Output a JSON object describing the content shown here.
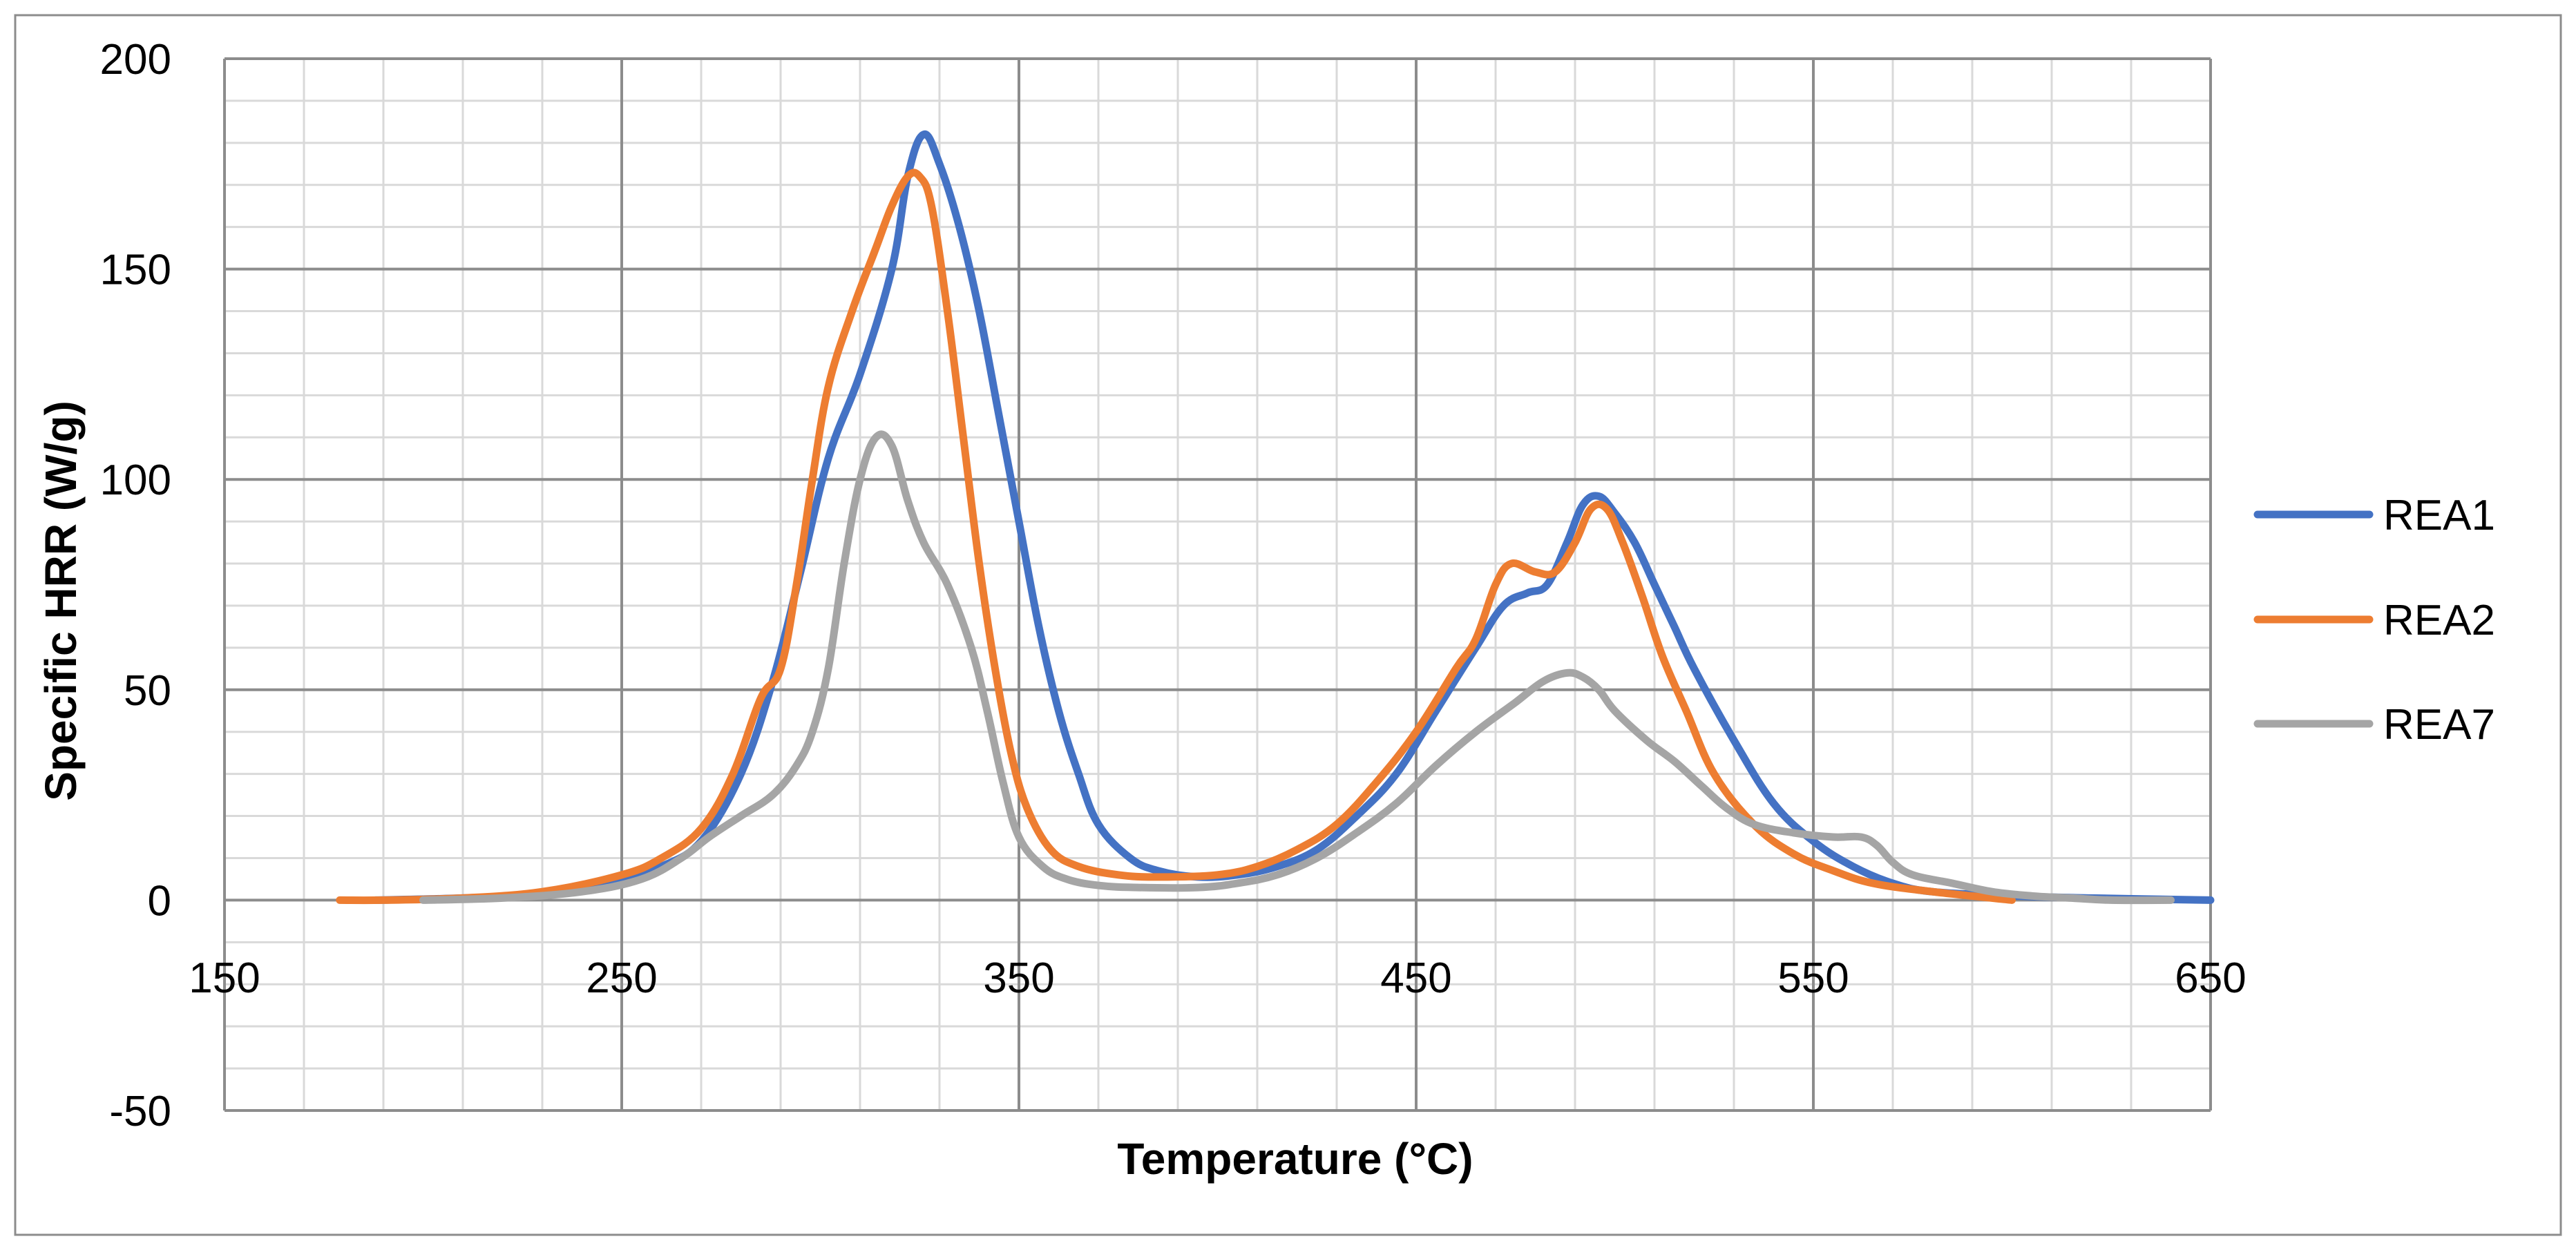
{
  "chart_data": {
    "type": "line",
    "title": "",
    "xlabel": "Temperature (°C)",
    "ylabel": "Specific HRR (W/g)",
    "xlim": [
      150,
      650
    ],
    "ylim": [
      -50,
      200
    ],
    "x_major_step": 100,
    "x_minor_step": 20,
    "y_major_step": 50,
    "y_minor_step": 10,
    "x_tick_labels": [
      "150",
      "250",
      "350",
      "450",
      "550",
      "650"
    ],
    "y_tick_labels": [
      "-50",
      "0",
      "50",
      "100",
      "150",
      "200"
    ],
    "grid": true,
    "legend_position": "right",
    "series": [
      {
        "name": "REA1",
        "color": "#4472C4",
        "points": [
          [
            188,
            0
          ],
          [
            210,
            0.5
          ],
          [
            230,
            1.5
          ],
          [
            250,
            5
          ],
          [
            260,
            8
          ],
          [
            270,
            14
          ],
          [
            280,
            30
          ],
          [
            288,
            52
          ],
          [
            295,
            78
          ],
          [
            302,
            105
          ],
          [
            310,
            125
          ],
          [
            318,
            150
          ],
          [
            322,
            172
          ],
          [
            326,
            182
          ],
          [
            330,
            175
          ],
          [
            335,
            160
          ],
          [
            340,
            140
          ],
          [
            345,
            115
          ],
          [
            350,
            90
          ],
          [
            355,
            65
          ],
          [
            360,
            45
          ],
          [
            365,
            30
          ],
          [
            370,
            18
          ],
          [
            378,
            10
          ],
          [
            385,
            7
          ],
          [
            395,
            5.5
          ],
          [
            405,
            6
          ],
          [
            415,
            8
          ],
          [
            425,
            12
          ],
          [
            435,
            20
          ],
          [
            445,
            30
          ],
          [
            455,
            45
          ],
          [
            465,
            60
          ],
          [
            472,
            70
          ],
          [
            478,
            73
          ],
          [
            483,
            75
          ],
          [
            488,
            85
          ],
          [
            492,
            94
          ],
          [
            496,
            96
          ],
          [
            500,
            92
          ],
          [
            505,
            85
          ],
          [
            510,
            75
          ],
          [
            515,
            65
          ],
          [
            520,
            55
          ],
          [
            530,
            38
          ],
          [
            540,
            23
          ],
          [
            550,
            14
          ],
          [
            560,
            8
          ],
          [
            570,
            4
          ],
          [
            580,
            2
          ],
          [
            600,
            1
          ],
          [
            620,
            0.5
          ],
          [
            650,
            0
          ]
        ]
      },
      {
        "name": "REA2",
        "color": "#ED7D31",
        "points": [
          [
            179,
            0
          ],
          [
            190,
            0
          ],
          [
            210,
            0.5
          ],
          [
            230,
            2
          ],
          [
            250,
            6
          ],
          [
            260,
            10
          ],
          [
            270,
            17
          ],
          [
            278,
            30
          ],
          [
            285,
            48
          ],
          [
            290,
            55
          ],
          [
            294,
            75
          ],
          [
            298,
            100
          ],
          [
            302,
            122
          ],
          [
            308,
            140
          ],
          [
            314,
            155
          ],
          [
            318,
            165
          ],
          [
            322,
            172
          ],
          [
            325,
            172
          ],
          [
            328,
            165
          ],
          [
            332,
            140
          ],
          [
            336,
            110
          ],
          [
            340,
            80
          ],
          [
            344,
            55
          ],
          [
            348,
            35
          ],
          [
            352,
            22
          ],
          [
            358,
            12
          ],
          [
            365,
            8
          ],
          [
            375,
            6
          ],
          [
            385,
            5.5
          ],
          [
            400,
            6
          ],
          [
            410,
            8
          ],
          [
            420,
            12
          ],
          [
            430,
            18
          ],
          [
            440,
            28
          ],
          [
            450,
            40
          ],
          [
            460,
            55
          ],
          [
            465,
            62
          ],
          [
            470,
            75
          ],
          [
            474,
            80
          ],
          [
            480,
            78
          ],
          [
            485,
            78
          ],
          [
            490,
            85
          ],
          [
            494,
            93
          ],
          [
            498,
            93
          ],
          [
            502,
            85
          ],
          [
            507,
            72
          ],
          [
            512,
            58
          ],
          [
            518,
            45
          ],
          [
            525,
            30
          ],
          [
            535,
            18
          ],
          [
            545,
            11
          ],
          [
            555,
            7
          ],
          [
            565,
            4
          ],
          [
            580,
            2
          ],
          [
            600,
            0
          ]
        ]
      },
      {
        "name": "REA7",
        "color": "#A5A5A5",
        "points": [
          [
            200,
            0
          ],
          [
            220,
            0.5
          ],
          [
            240,
            2
          ],
          [
            255,
            5
          ],
          [
            265,
            10
          ],
          [
            272,
            15
          ],
          [
            280,
            20
          ],
          [
            288,
            25
          ],
          [
            294,
            32
          ],
          [
            298,
            40
          ],
          [
            302,
            55
          ],
          [
            306,
            80
          ],
          [
            310,
            100
          ],
          [
            314,
            110
          ],
          [
            318,
            108
          ],
          [
            322,
            95
          ],
          [
            326,
            85
          ],
          [
            332,
            75
          ],
          [
            338,
            60
          ],
          [
            342,
            45
          ],
          [
            346,
            28
          ],
          [
            350,
            15
          ],
          [
            356,
            8
          ],
          [
            362,
            5
          ],
          [
            370,
            3.5
          ],
          [
            380,
            3
          ],
          [
            395,
            3
          ],
          [
            405,
            4
          ],
          [
            415,
            6
          ],
          [
            425,
            10
          ],
          [
            435,
            16
          ],
          [
            445,
            23
          ],
          [
            455,
            32
          ],
          [
            465,
            40
          ],
          [
            475,
            47
          ],
          [
            482,
            52
          ],
          [
            488,
            54
          ],
          [
            492,
            53
          ],
          [
            496,
            50
          ],
          [
            500,
            45
          ],
          [
            508,
            38
          ],
          [
            515,
            33
          ],
          [
            522,
            27
          ],
          [
            528,
            22
          ],
          [
            535,
            18
          ],
          [
            545,
            16
          ],
          [
            555,
            15
          ],
          [
            562,
            15
          ],
          [
            566,
            13
          ],
          [
            570,
            9
          ],
          [
            575,
            6
          ],
          [
            585,
            4
          ],
          [
            595,
            2
          ],
          [
            605,
            1
          ],
          [
            615,
            0.5
          ],
          [
            625,
            0
          ],
          [
            640,
            0
          ]
        ]
      }
    ]
  }
}
